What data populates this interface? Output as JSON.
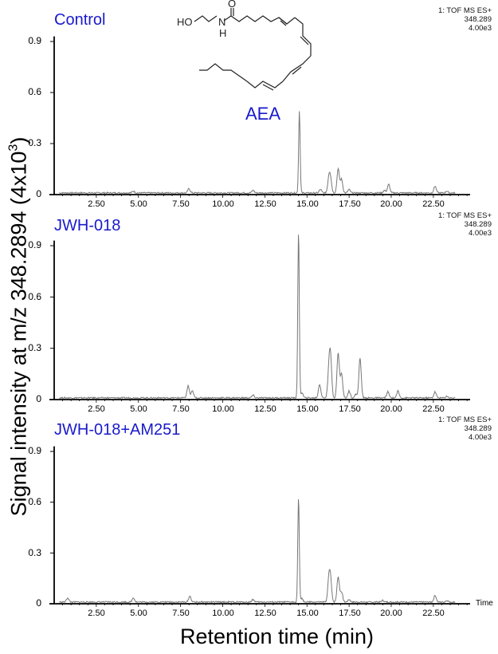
{
  "figure": {
    "y_axis_label": "Signal intensity at m/z 348.2894 (4x10",
    "y_axis_label_sup": "3",
    "y_axis_label_close": ")",
    "x_axis_label": "Retention time (min)",
    "time_label": "Time",
    "molecule_label": "AEA",
    "structure_atoms": {
      "ho": "HO",
      "n": "N",
      "h": "H",
      "o": "O"
    }
  },
  "panels": [
    {
      "title": "Control",
      "meta": [
        "1: TOF MS ES+",
        "348.289",
        "4.00e3"
      ]
    },
    {
      "title": "JWH-018",
      "meta": [
        "1: TOF MS ES+",
        "348.289",
        "4.00e3"
      ]
    },
    {
      "title": "JWH-018+AM251",
      "meta": [
        "1: TOF MS ES+",
        "348.289",
        "4.00e3"
      ]
    }
  ],
  "y_ticks": [
    "0.9",
    "0.6",
    "0.3",
    "0"
  ],
  "x_ticks": [
    "2.50",
    "5.00",
    "7.50",
    "10.00",
    "12.50",
    "15.00",
    "17.50",
    "20.00",
    "22.50"
  ],
  "colors": {
    "title_blue": "#1a1acc",
    "trace": "#777777",
    "axis": "#000000"
  },
  "chart_data": [
    {
      "type": "line",
      "title": "Control",
      "xlabel": "Retention time (min)",
      "ylabel": "Signal intensity at m/z 348.2894 (4x10^3)",
      "xlim": [
        0,
        24.5
      ],
      "ylim": [
        0,
        0.9
      ],
      "x_ticks": [
        2.5,
        5,
        7.5,
        10,
        12.5,
        15,
        17.5,
        20,
        22.5
      ],
      "y_ticks": [
        0,
        0.3,
        0.6,
        0.9
      ],
      "annotations": [
        "AEA (peak at ~14.55 min)",
        "1: TOF MS ES+ 348.289 4.00e3"
      ],
      "peaks": [
        {
          "x": 4.7,
          "y": 0.01
        },
        {
          "x": 8.0,
          "y": 0.025
        },
        {
          "x": 11.8,
          "y": 0.015
        },
        {
          "x": 14.55,
          "y": 0.48
        },
        {
          "x": 15.8,
          "y": 0.02
        },
        {
          "x": 16.3,
          "y": 0.085
        },
        {
          "x": 16.4,
          "y": 0.075
        },
        {
          "x": 16.85,
          "y": 0.14
        },
        {
          "x": 17.05,
          "y": 0.08
        },
        {
          "x": 17.5,
          "y": 0.02
        },
        {
          "x": 19.6,
          "y": 0.015
        },
        {
          "x": 19.85,
          "y": 0.05
        },
        {
          "x": 22.6,
          "y": 0.04
        },
        {
          "x": 23.3,
          "y": 0.01
        }
      ]
    },
    {
      "type": "line",
      "title": "JWH-018",
      "xlabel": "Retention time (min)",
      "ylabel": "Signal intensity at m/z 348.2894 (4x10^3)",
      "xlim": [
        0,
        24.5
      ],
      "ylim": [
        0,
        0.9
      ],
      "x_ticks": [
        2.5,
        5,
        7.5,
        10,
        12.5,
        15,
        17.5,
        20,
        22.5
      ],
      "y_ticks": [
        0,
        0.3,
        0.6,
        0.9
      ],
      "annotations": [
        "1: TOF MS ES+ 348.289 4.00e3"
      ],
      "peaks": [
        {
          "x": 7.95,
          "y": 0.07
        },
        {
          "x": 8.2,
          "y": 0.04
        },
        {
          "x": 11.8,
          "y": 0.015
        },
        {
          "x": 14.5,
          "y": 0.98
        },
        {
          "x": 14.7,
          "y": 0.03
        },
        {
          "x": 15.75,
          "y": 0.08
        },
        {
          "x": 16.3,
          "y": 0.15
        },
        {
          "x": 16.4,
          "y": 0.22
        },
        {
          "x": 16.85,
          "y": 0.26
        },
        {
          "x": 17.05,
          "y": 0.14
        },
        {
          "x": 17.5,
          "y": 0.04
        },
        {
          "x": 17.9,
          "y": 0.02
        },
        {
          "x": 18.15,
          "y": 0.23
        },
        {
          "x": 19.8,
          "y": 0.035
        },
        {
          "x": 20.4,
          "y": 0.04
        },
        {
          "x": 22.6,
          "y": 0.035
        },
        {
          "x": 23.3,
          "y": 0.01
        }
      ]
    },
    {
      "type": "line",
      "title": "JWH-018+AM251",
      "xlabel": "Retention time (min)",
      "ylabel": "Signal intensity at m/z 348.2894 (4x10^3)",
      "xlim": [
        0,
        24.5
      ],
      "ylim": [
        0,
        0.9
      ],
      "x_ticks": [
        2.5,
        5,
        7.5,
        10,
        12.5,
        15,
        17.5,
        20,
        22.5
      ],
      "y_ticks": [
        0,
        0.3,
        0.6,
        0.9
      ],
      "annotations": [
        "1: TOF MS ES+ 348.289 4.00e3",
        "Time"
      ],
      "peaks": [
        {
          "x": 0.8,
          "y": 0.025
        },
        {
          "x": 4.7,
          "y": 0.025
        },
        {
          "x": 8.05,
          "y": 0.035
        },
        {
          "x": 11.8,
          "y": 0.015
        },
        {
          "x": 14.5,
          "y": 0.62
        },
        {
          "x": 14.7,
          "y": 0.02
        },
        {
          "x": 16.3,
          "y": 0.13
        },
        {
          "x": 16.4,
          "y": 0.12
        },
        {
          "x": 16.85,
          "y": 0.15
        },
        {
          "x": 17.05,
          "y": 0.06
        },
        {
          "x": 17.5,
          "y": 0.015
        },
        {
          "x": 19.5,
          "y": 0.01
        },
        {
          "x": 22.6,
          "y": 0.04
        },
        {
          "x": 23.3,
          "y": 0.01
        }
      ]
    }
  ]
}
